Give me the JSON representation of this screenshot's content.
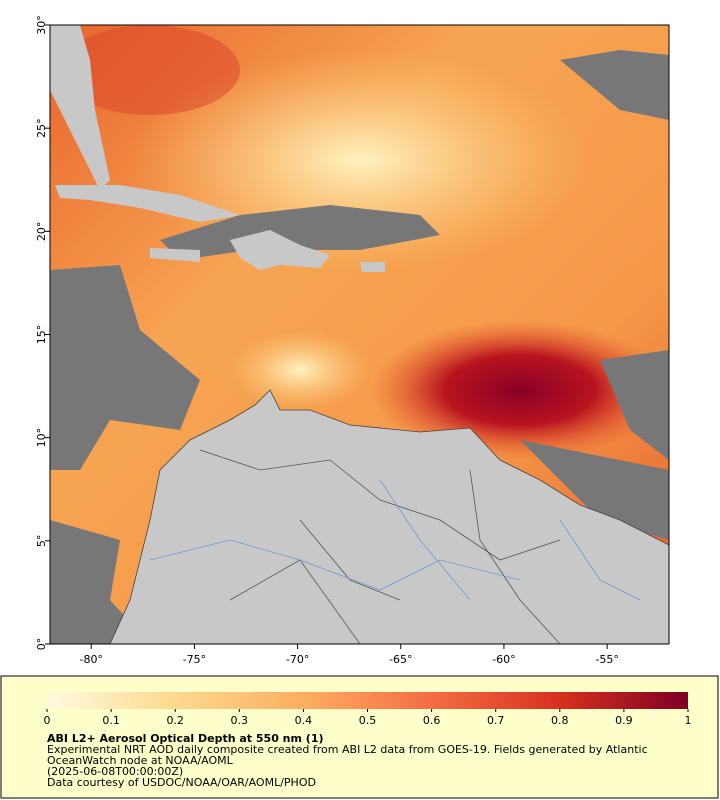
{
  "map": {
    "xlim": [
      -82,
      -52
    ],
    "ylim": [
      0,
      30
    ],
    "xticks": [
      {
        "value": -80,
        "label": "-80°"
      },
      {
        "value": -75,
        "label": "-75°"
      },
      {
        "value": -70,
        "label": "-70°"
      },
      {
        "value": -65,
        "label": "-65°"
      },
      {
        "value": -60,
        "label": "-60°"
      },
      {
        "value": -55,
        "label": "-55°"
      }
    ],
    "yticks": [
      {
        "value": 0,
        "label": "0°"
      },
      {
        "value": 5,
        "label": "5°"
      },
      {
        "value": 10,
        "label": "10°"
      },
      {
        "value": 15,
        "label": "15°"
      },
      {
        "value": 20,
        "label": "20°"
      },
      {
        "value": 25,
        "label": "25°"
      },
      {
        "value": 30,
        "label": "30°"
      }
    ]
  },
  "colorbar": {
    "lim": [
      0,
      1
    ],
    "ticks": [
      0,
      0.1,
      0.2,
      0.3,
      0.4,
      0.5,
      0.6,
      0.7,
      0.8,
      0.9,
      1
    ],
    "colors": [
      "#fffbe0",
      "#fed98e",
      "#fdae61",
      "#f46d43",
      "#d7301f",
      "#7f0024"
    ]
  },
  "caption": {
    "title": "ABI L2+ Aerosol Optical Depth at 550 nm (1)",
    "lines": [
      "Experimental NRT AOD daily composite created from ABI L2 data from GOES-19. Fields generated by Atlantic",
      "OceanWatch node at NOAA/AOML",
      "(2025-06-08T00:00:00Z)",
      "Data courtesy of USDOC/NOAA/OAR/AOML/PHOD"
    ]
  }
}
